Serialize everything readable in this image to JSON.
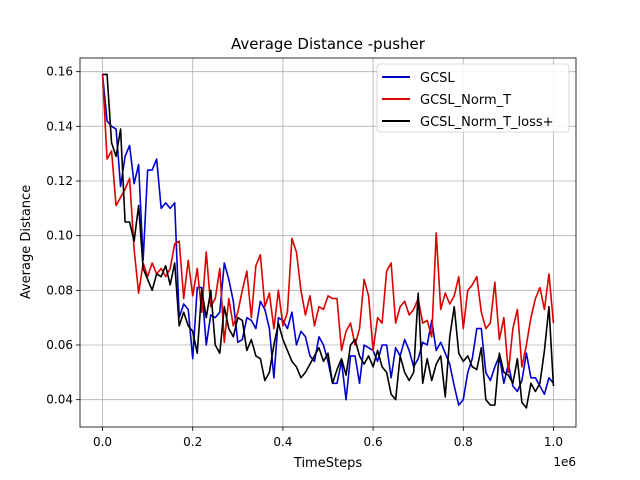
{
  "chart_data": {
    "type": "line",
    "title": "Average Distance -pusher",
    "xlabel": "TimeSteps",
    "ylabel": "Average Distance",
    "x_scale_label": "1e6",
    "xlim": [
      -0.05,
      1.05
    ],
    "ylim": [
      0.03,
      0.165
    ],
    "xticks": [
      0.0,
      0.2,
      0.4,
      0.6,
      0.8,
      1.0
    ],
    "xtick_labels": [
      "0.0",
      "0.2",
      "0.4",
      "0.6",
      "0.8",
      "1.0"
    ],
    "yticks": [
      0.04,
      0.06,
      0.08,
      0.1,
      0.12,
      0.14,
      0.16
    ],
    "ytick_labels": [
      "0.04",
      "0.06",
      "0.08",
      "0.10",
      "0.12",
      "0.14",
      "0.16"
    ],
    "grid": true,
    "legend_position": "top-right",
    "series": [
      {
        "name": "GCSL",
        "color": "#0000cc",
        "points": [
          [
            0.0,
            0.159
          ],
          [
            0.01,
            0.142
          ],
          [
            0.02,
            0.14
          ],
          [
            0.03,
            0.139
          ],
          [
            0.04,
            0.118
          ],
          [
            0.05,
            0.129
          ],
          [
            0.06,
            0.133
          ],
          [
            0.07,
            0.119
          ],
          [
            0.08,
            0.126
          ],
          [
            0.09,
            0.091
          ],
          [
            0.1,
            0.124
          ],
          [
            0.11,
            0.124
          ],
          [
            0.12,
            0.128
          ],
          [
            0.13,
            0.11
          ],
          [
            0.14,
            0.112
          ],
          [
            0.15,
            0.11
          ],
          [
            0.16,
            0.112
          ],
          [
            0.17,
            0.07
          ],
          [
            0.18,
            0.075
          ],
          [
            0.19,
            0.073
          ],
          [
            0.2,
            0.055
          ],
          [
            0.21,
            0.081
          ],
          [
            0.22,
            0.081
          ],
          [
            0.23,
            0.06
          ],
          [
            0.24,
            0.071
          ],
          [
            0.25,
            0.07
          ],
          [
            0.26,
            0.072
          ],
          [
            0.27,
            0.09
          ],
          [
            0.28,
            0.084
          ],
          [
            0.29,
            0.076
          ],
          [
            0.3,
            0.061
          ],
          [
            0.31,
            0.062
          ],
          [
            0.32,
            0.07
          ],
          [
            0.33,
            0.069
          ],
          [
            0.34,
            0.066
          ],
          [
            0.35,
            0.076
          ],
          [
            0.36,
            0.073
          ],
          [
            0.37,
            0.066
          ],
          [
            0.38,
            0.048
          ],
          [
            0.39,
            0.07
          ],
          [
            0.4,
            0.069
          ],
          [
            0.41,
            0.066
          ],
          [
            0.42,
            0.072
          ],
          [
            0.43,
            0.06
          ],
          [
            0.44,
            0.065
          ],
          [
            0.45,
            0.063
          ],
          [
            0.46,
            0.056
          ],
          [
            0.47,
            0.054
          ],
          [
            0.48,
            0.063
          ],
          [
            0.49,
            0.06
          ],
          [
            0.5,
            0.054
          ],
          [
            0.51,
            0.046
          ],
          [
            0.52,
            0.046
          ],
          [
            0.53,
            0.054
          ],
          [
            0.54,
            0.04
          ],
          [
            0.55,
            0.056
          ],
          [
            0.56,
            0.056
          ],
          [
            0.57,
            0.046
          ],
          [
            0.58,
            0.06
          ],
          [
            0.59,
            0.059
          ],
          [
            0.6,
            0.058
          ],
          [
            0.61,
            0.054
          ],
          [
            0.62,
            0.06
          ],
          [
            0.63,
            0.06
          ],
          [
            0.64,
            0.048
          ],
          [
            0.65,
            0.059
          ],
          [
            0.66,
            0.056
          ],
          [
            0.67,
            0.062
          ],
          [
            0.68,
            0.058
          ],
          [
            0.69,
            0.052
          ],
          [
            0.7,
            0.055
          ],
          [
            0.71,
            0.061
          ],
          [
            0.72,
            0.06
          ],
          [
            0.73,
            0.069
          ],
          [
            0.74,
            0.058
          ],
          [
            0.75,
            0.061
          ],
          [
            0.76,
            0.057
          ],
          [
            0.77,
            0.053
          ],
          [
            0.78,
            0.045
          ],
          [
            0.79,
            0.038
          ],
          [
            0.8,
            0.04
          ],
          [
            0.81,
            0.05
          ],
          [
            0.82,
            0.055
          ],
          [
            0.83,
            0.066
          ],
          [
            0.84,
            0.066
          ],
          [
            0.85,
            0.05
          ],
          [
            0.86,
            0.047
          ],
          [
            0.87,
            0.052
          ],
          [
            0.88,
            0.056
          ],
          [
            0.89,
            0.046
          ],
          [
            0.9,
            0.053
          ],
          [
            0.91,
            0.045
          ],
          [
            0.92,
            0.043
          ],
          [
            0.93,
            0.047
          ],
          [
            0.94,
            0.057
          ],
          [
            0.95,
            0.048
          ],
          [
            0.96,
            0.048
          ],
          [
            0.97,
            0.045
          ],
          [
            0.98,
            0.042
          ],
          [
            0.99,
            0.048
          ],
          [
            1.0,
            0.046
          ]
        ]
      },
      {
        "name": "GCSL_Norm_T",
        "color": "#dd0000",
        "points": [
          [
            0.0,
            0.159
          ],
          [
            0.01,
            0.128
          ],
          [
            0.02,
            0.131
          ],
          [
            0.03,
            0.111
          ],
          [
            0.04,
            0.114
          ],
          [
            0.05,
            0.117
          ],
          [
            0.06,
            0.121
          ],
          [
            0.07,
            0.095
          ],
          [
            0.08,
            0.079
          ],
          [
            0.09,
            0.09
          ],
          [
            0.1,
            0.085
          ],
          [
            0.11,
            0.09
          ],
          [
            0.12,
            0.086
          ],
          [
            0.13,
            0.088
          ],
          [
            0.14,
            0.085
          ],
          [
            0.15,
            0.088
          ],
          [
            0.16,
            0.097
          ],
          [
            0.17,
            0.098
          ],
          [
            0.18,
            0.077
          ],
          [
            0.19,
            0.091
          ],
          [
            0.2,
            0.078
          ],
          [
            0.21,
            0.088
          ],
          [
            0.22,
            0.072
          ],
          [
            0.23,
            0.094
          ],
          [
            0.24,
            0.074
          ],
          [
            0.25,
            0.077
          ],
          [
            0.26,
            0.088
          ],
          [
            0.27,
            0.061
          ],
          [
            0.28,
            0.077
          ],
          [
            0.29,
            0.067
          ],
          [
            0.3,
            0.072
          ],
          [
            0.31,
            0.08
          ],
          [
            0.32,
            0.087
          ],
          [
            0.33,
            0.07
          ],
          [
            0.34,
            0.089
          ],
          [
            0.35,
            0.093
          ],
          [
            0.36,
            0.074
          ],
          [
            0.37,
            0.079
          ],
          [
            0.38,
            0.066
          ],
          [
            0.39,
            0.08
          ],
          [
            0.4,
            0.067
          ],
          [
            0.41,
            0.072
          ],
          [
            0.42,
            0.099
          ],
          [
            0.43,
            0.094
          ],
          [
            0.44,
            0.08
          ],
          [
            0.45,
            0.071
          ],
          [
            0.46,
            0.078
          ],
          [
            0.47,
            0.067
          ],
          [
            0.48,
            0.074
          ],
          [
            0.49,
            0.073
          ],
          [
            0.5,
            0.078
          ],
          [
            0.51,
            0.077
          ],
          [
            0.52,
            0.077
          ],
          [
            0.53,
            0.058
          ],
          [
            0.54,
            0.065
          ],
          [
            0.55,
            0.068
          ],
          [
            0.56,
            0.06
          ],
          [
            0.57,
            0.066
          ],
          [
            0.58,
            0.084
          ],
          [
            0.59,
            0.078
          ],
          [
            0.6,
            0.058
          ],
          [
            0.61,
            0.07
          ],
          [
            0.62,
            0.068
          ],
          [
            0.63,
            0.087
          ],
          [
            0.64,
            0.09
          ],
          [
            0.65,
            0.068
          ],
          [
            0.66,
            0.074
          ],
          [
            0.67,
            0.076
          ],
          [
            0.68,
            0.071
          ],
          [
            0.69,
            0.073
          ],
          [
            0.7,
            0.077
          ],
          [
            0.71,
            0.068
          ],
          [
            0.72,
            0.069
          ],
          [
            0.73,
            0.063
          ],
          [
            0.74,
            0.101
          ],
          [
            0.75,
            0.073
          ],
          [
            0.76,
            0.079
          ],
          [
            0.77,
            0.075
          ],
          [
            0.78,
            0.078
          ],
          [
            0.79,
            0.085
          ],
          [
            0.8,
            0.066
          ],
          [
            0.81,
            0.08
          ],
          [
            0.82,
            0.082
          ],
          [
            0.83,
            0.085
          ],
          [
            0.84,
            0.072
          ],
          [
            0.85,
            0.066
          ],
          [
            0.86,
            0.068
          ],
          [
            0.87,
            0.083
          ],
          [
            0.88,
            0.062
          ],
          [
            0.89,
            0.07
          ],
          [
            0.9,
            0.05
          ],
          [
            0.91,
            0.066
          ],
          [
            0.92,
            0.073
          ],
          [
            0.93,
            0.052
          ],
          [
            0.94,
            0.06
          ],
          [
            0.95,
            0.07
          ],
          [
            0.96,
            0.077
          ],
          [
            0.97,
            0.081
          ],
          [
            0.98,
            0.073
          ],
          [
            0.99,
            0.086
          ],
          [
            1.0,
            0.068
          ]
        ]
      },
      {
        "name": "GCSL_Norm_T_loss+",
        "color": "#000000",
        "points": [
          [
            0.0,
            0.159
          ],
          [
            0.01,
            0.159
          ],
          [
            0.02,
            0.134
          ],
          [
            0.03,
            0.129
          ],
          [
            0.04,
            0.139
          ],
          [
            0.05,
            0.105
          ],
          [
            0.06,
            0.105
          ],
          [
            0.07,
            0.098
          ],
          [
            0.08,
            0.111
          ],
          [
            0.09,
            0.088
          ],
          [
            0.1,
            0.084
          ],
          [
            0.11,
            0.08
          ],
          [
            0.12,
            0.086
          ],
          [
            0.13,
            0.085
          ],
          [
            0.14,
            0.089
          ],
          [
            0.15,
            0.082
          ],
          [
            0.16,
            0.09
          ],
          [
            0.17,
            0.067
          ],
          [
            0.18,
            0.072
          ],
          [
            0.19,
            0.067
          ],
          [
            0.2,
            0.065
          ],
          [
            0.21,
            0.057
          ],
          [
            0.22,
            0.08
          ],
          [
            0.23,
            0.07
          ],
          [
            0.24,
            0.08
          ],
          [
            0.25,
            0.06
          ],
          [
            0.26,
            0.057
          ],
          [
            0.27,
            0.074
          ],
          [
            0.28,
            0.066
          ],
          [
            0.29,
            0.063
          ],
          [
            0.3,
            0.07
          ],
          [
            0.31,
            0.069
          ],
          [
            0.32,
            0.058
          ],
          [
            0.33,
            0.062
          ],
          [
            0.34,
            0.056
          ],
          [
            0.35,
            0.055
          ],
          [
            0.36,
            0.047
          ],
          [
            0.37,
            0.05
          ],
          [
            0.38,
            0.06
          ],
          [
            0.39,
            0.068
          ],
          [
            0.4,
            0.062
          ],
          [
            0.41,
            0.058
          ],
          [
            0.42,
            0.054
          ],
          [
            0.43,
            0.052
          ],
          [
            0.44,
            0.048
          ],
          [
            0.45,
            0.05
          ],
          [
            0.46,
            0.053
          ],
          [
            0.47,
            0.056
          ],
          [
            0.48,
            0.059
          ],
          [
            0.49,
            0.054
          ],
          [
            0.5,
            0.057
          ],
          [
            0.51,
            0.046
          ],
          [
            0.52,
            0.051
          ],
          [
            0.53,
            0.055
          ],
          [
            0.54,
            0.049
          ],
          [
            0.55,
            0.06
          ],
          [
            0.56,
            0.062
          ],
          [
            0.57,
            0.056
          ],
          [
            0.58,
            0.053
          ],
          [
            0.59,
            0.056
          ],
          [
            0.6,
            0.052
          ],
          [
            0.61,
            0.058
          ],
          [
            0.62,
            0.052
          ],
          [
            0.63,
            0.05
          ],
          [
            0.64,
            0.042
          ],
          [
            0.65,
            0.04
          ],
          [
            0.66,
            0.056
          ],
          [
            0.67,
            0.05
          ],
          [
            0.68,
            0.047
          ],
          [
            0.69,
            0.05
          ],
          [
            0.7,
            0.079
          ],
          [
            0.71,
            0.046
          ],
          [
            0.72,
            0.055
          ],
          [
            0.73,
            0.047
          ],
          [
            0.74,
            0.053
          ],
          [
            0.75,
            0.056
          ],
          [
            0.76,
            0.041
          ],
          [
            0.77,
            0.063
          ],
          [
            0.78,
            0.074
          ],
          [
            0.79,
            0.057
          ],
          [
            0.8,
            0.054
          ],
          [
            0.81,
            0.056
          ],
          [
            0.82,
            0.052
          ],
          [
            0.83,
            0.051
          ],
          [
            0.84,
            0.059
          ],
          [
            0.85,
            0.04
          ],
          [
            0.86,
            0.038
          ],
          [
            0.87,
            0.038
          ],
          [
            0.88,
            0.057
          ],
          [
            0.89,
            0.05
          ],
          [
            0.9,
            0.049
          ],
          [
            0.91,
            0.046
          ],
          [
            0.92,
            0.055
          ],
          [
            0.93,
            0.039
          ],
          [
            0.94,
            0.037
          ],
          [
            0.95,
            0.046
          ],
          [
            0.96,
            0.043
          ],
          [
            0.97,
            0.046
          ],
          [
            0.98,
            0.058
          ],
          [
            0.99,
            0.074
          ],
          [
            1.0,
            0.045
          ]
        ]
      }
    ]
  }
}
